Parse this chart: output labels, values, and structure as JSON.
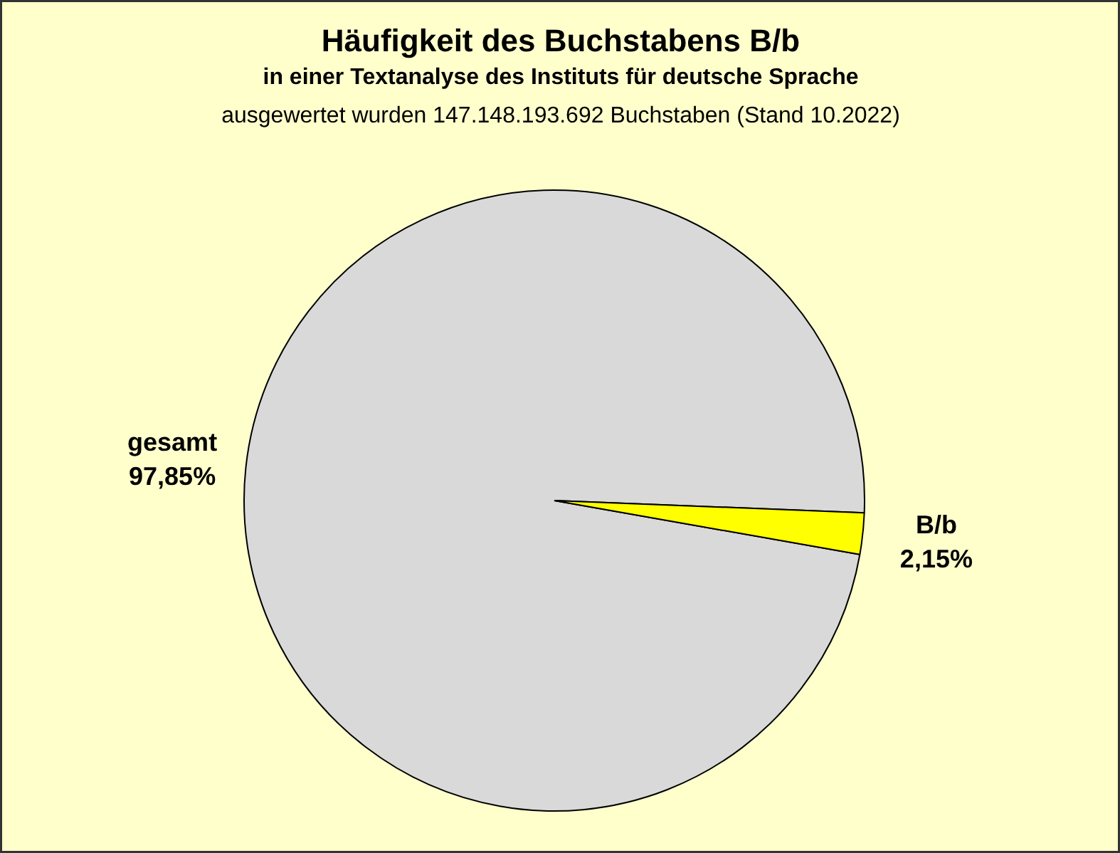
{
  "chart_data": {
    "type": "pie",
    "title": "Häufigkeit des Buchstabens B/b",
    "subtitle": "in einer Textanalyse des Instituts für deutsche Sprache",
    "annotations": [
      "ausgewertet wurden 147.148.193.692 Buchstaben (Stand 10.2022)"
    ],
    "categories": [
      "gesamt",
      "B/b"
    ],
    "values": [
      97.85,
      2.15
    ],
    "colors": [
      "#d9d9d9",
      "#ffff00"
    ],
    "value_labels": [
      "97,85%",
      "2,15%"
    ]
  }
}
